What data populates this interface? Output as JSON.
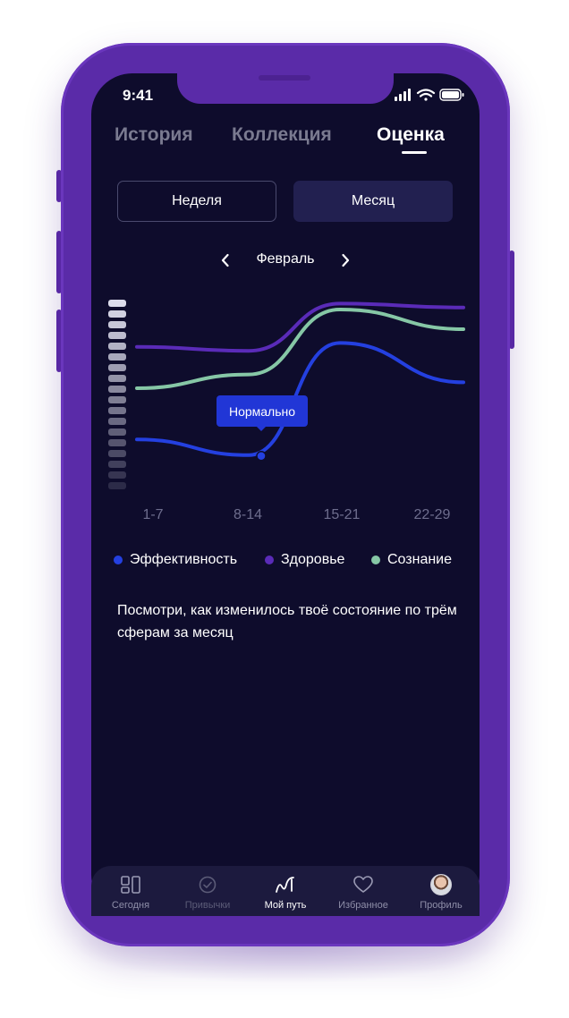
{
  "status_bar": {
    "time": "9:41"
  },
  "top_tabs": [
    {
      "label": "История",
      "active": false
    },
    {
      "label": "Коллекция",
      "active": false
    },
    {
      "label": "Оценка",
      "active": true
    }
  ],
  "period_toggle": {
    "week_label": "Неделя",
    "month_label": "Месяц",
    "selected": "Месяц"
  },
  "month_nav": {
    "label": "Февраль",
    "prev_icon": "chevron-left-icon",
    "next_icon": "chevron-right-icon"
  },
  "chart_data": {
    "type": "line",
    "title": "",
    "xlabel": "",
    "ylabel": "",
    "categories": [
      "1-7",
      "8-14",
      "15-21",
      "22-29"
    ],
    "grid": false,
    "legend_position": "bottom",
    "series": [
      {
        "name": "Эффективность",
        "color": "#2440e0",
        "values": [
          0.29,
          0.21,
          0.78,
          0.58
        ]
      },
      {
        "name": "Здоровье",
        "color": "#5a2bb8",
        "values": [
          0.76,
          0.74,
          0.98,
          0.96
        ]
      },
      {
        "name": "Сознание",
        "color": "#86c7a6",
        "values": [
          0.55,
          0.62,
          0.95,
          0.85
        ]
      }
    ],
    "tooltip": {
      "label": "Нормально",
      "series": "Эффективность",
      "category": "8-14"
    }
  },
  "legend": [
    {
      "label": "Эффективность",
      "color": "#2440e0"
    },
    {
      "label": "Здоровье",
      "color": "#5a2bb8"
    },
    {
      "label": "Сознание",
      "color": "#86c7a6"
    }
  ],
  "description": "Посмотри, как изменилось твоё состояние по трём сферам за месяц",
  "tab_bar": [
    {
      "label": "Сегодня",
      "icon": "dashboard-icon",
      "state": "normal"
    },
    {
      "label": "Привычки",
      "icon": "check-circle-icon",
      "state": "dim"
    },
    {
      "label": "Мой путь",
      "icon": "path-icon",
      "state": "active"
    },
    {
      "label": "Избранное",
      "icon": "heart-icon",
      "state": "normal"
    },
    {
      "label": "Профиль",
      "icon": "avatar-icon",
      "state": "normal"
    }
  ]
}
